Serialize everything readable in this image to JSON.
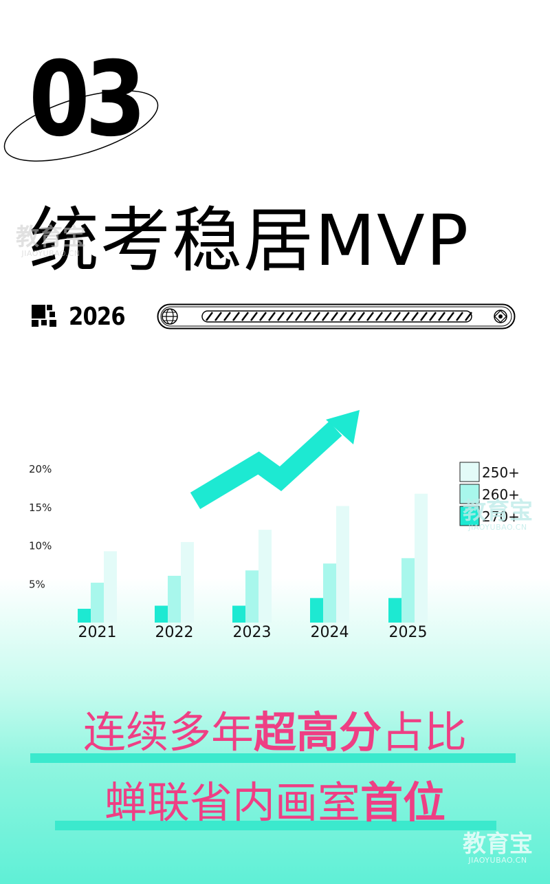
{
  "header": {
    "section_number": "03",
    "headline": "统考稳居MVP",
    "year": "2026"
  },
  "colors": {
    "accent": "#1de9d2",
    "series_250": "#e3fbf8",
    "series_260": "#a8f7ec",
    "series_270": "#1de9d2",
    "pink": "#ee3f84"
  },
  "chart_data": {
    "type": "bar",
    "categories": [
      "2021",
      "2022",
      "2023",
      "2024",
      "2025"
    ],
    "y_ticks": [
      "5%",
      "10%",
      "15%",
      "20%"
    ],
    "ylim": [
      0,
      20
    ],
    "series": [
      {
        "name": "270+",
        "values": [
          1.8,
          2.2,
          2.2,
          3.2,
          3.2
        ]
      },
      {
        "name": "260+",
        "values": [
          5.2,
          6.1,
          6.8,
          7.7,
          8.4
        ]
      },
      {
        "name": "250+",
        "values": [
          9.3,
          10.5,
          12.1,
          15.2,
          16.8
        ]
      }
    ],
    "legend_position": "top-right",
    "legend": [
      "250+",
      "260+",
      "270+"
    ]
  },
  "bottom": {
    "line1_a": "连续多年",
    "line1_b": "超高分",
    "line1_c": "占比",
    "line2_a": "蝉联省内画室",
    "line2_b": "首位"
  },
  "watermarks": [
    {
      "text": "教育宝",
      "sub": "JIAOYUBAO.CN"
    },
    {
      "text": "教育宝",
      "sub": "JIAOYUBAO.CN"
    },
    {
      "text": "教育宝",
      "sub": "JIAOYUBAO.CN"
    }
  ]
}
